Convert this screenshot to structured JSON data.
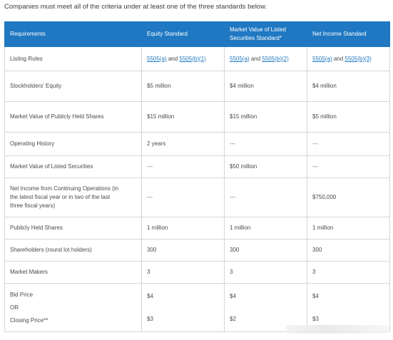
{
  "intro": "Companies must meet all of the criteria under at least one of the three standards below.",
  "headers": {
    "requirements": "Requirements",
    "equity": "Equity Standard",
    "market_value_line1": "Market Value of Listed",
    "market_value_line2": "Securities Standard*",
    "net_income": "Net Income Standard"
  },
  "listing_rules": {
    "label": "Listing Rules",
    "equity": {
      "link1": "5505(a)",
      "and": "and",
      "link2": "5505(b)(1)"
    },
    "market_value": {
      "link1": "5505(a)",
      "and": "and",
      "link2": "5505(b)(2)"
    },
    "net_income": {
      "link1": "5505(a)",
      "and": "and",
      "link2": "5505(b)(3)"
    }
  },
  "rows": [
    {
      "label": "Stockholders' Equity",
      "equity": "$5 million",
      "market_value": "$4 million",
      "net_income": "$4 million"
    },
    {
      "label": "Market Value of Publicly Held Shares",
      "equity": "$15 million",
      "market_value": "$15 million",
      "net_income": "$5 million"
    },
    {
      "label": "Operating History",
      "equity": "2 years",
      "market_value": "---",
      "net_income": "---"
    },
    {
      "label": "Market Value of Listed Securities",
      "equity": "---",
      "market_value": "$50 million",
      "net_income": "---"
    },
    {
      "label_line1": "Net Income from Continuing Operations (in",
      "label_line2": "the latest fiscal year or in two of the last",
      "label_line3": "three fiscal years)",
      "equity": "---",
      "market_value": "---",
      "net_income": "$750,000"
    },
    {
      "label": "Publicly Held Shares",
      "equity": "1 million",
      "market_value": "1 million",
      "net_income": "1 million"
    },
    {
      "label": "Shareholders (round lot holders)",
      "equity": "300",
      "market_value": "300",
      "net_income": "300"
    },
    {
      "label": "Market Makers",
      "equity": "3",
      "market_value": "3",
      "net_income": "3"
    }
  ],
  "price_row": {
    "bid_label": "Bid Price",
    "or_label": "OR",
    "closing_label": "Closing Price**",
    "equity_bid": "$4",
    "equity_closing": "$3",
    "market_value_bid": "$4",
    "market_value_closing": "$2",
    "net_income_bid": "$4",
    "net_income_closing": "$3"
  }
}
